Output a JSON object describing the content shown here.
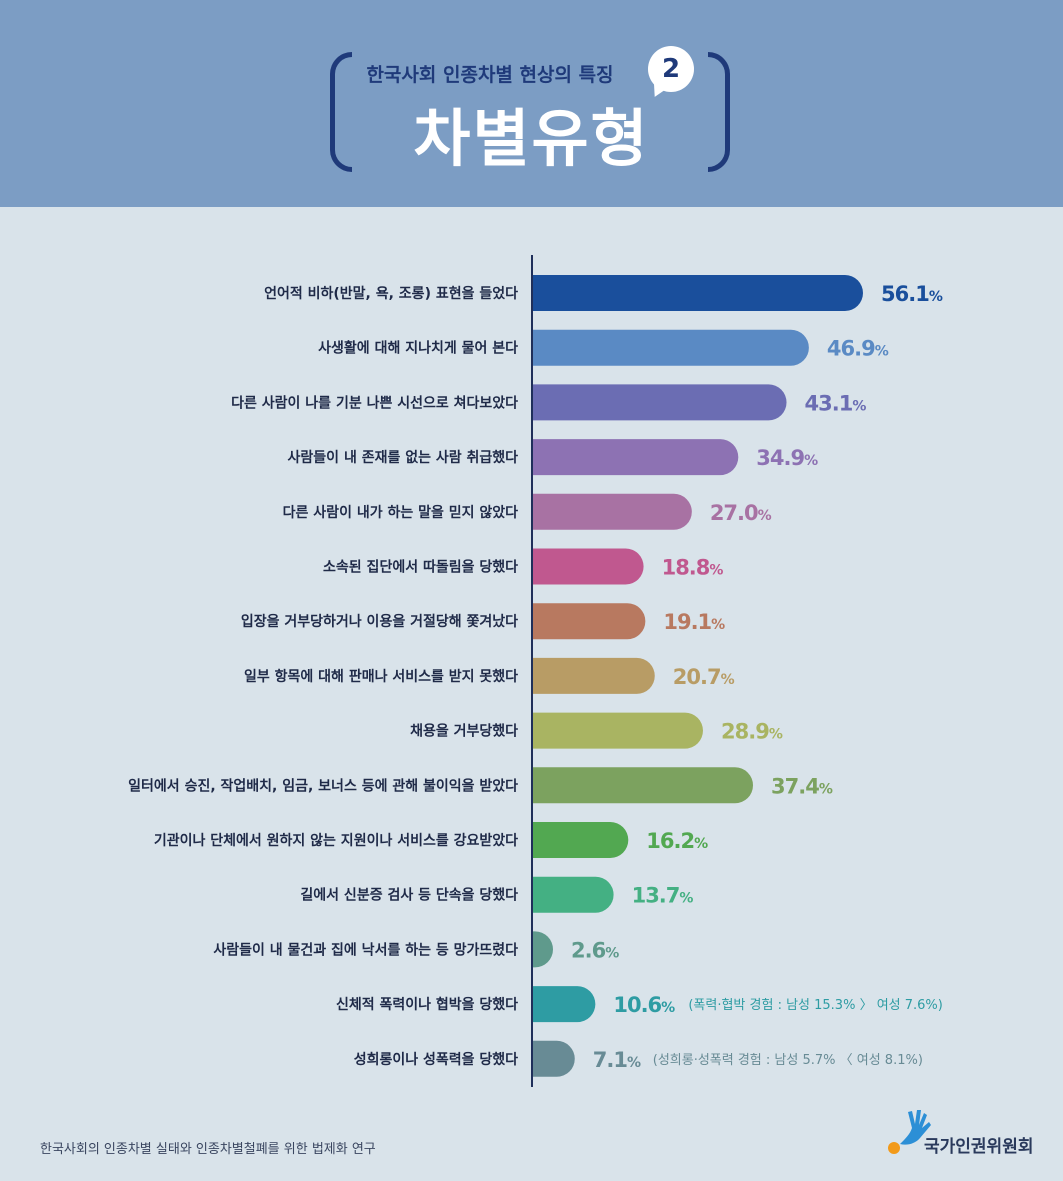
{
  "header": {
    "subtitle": "한국사회 인종차별 현상의 특징",
    "badge": "2",
    "title": "차별유형"
  },
  "chart_data": {
    "type": "bar",
    "orientation": "horizontal",
    "unit": "%",
    "categories": [
      "언어적 비하(반말, 욕, 조롱) 표현을 들었다",
      "사생활에 대해 지나치게 물어 본다",
      "다른 사람이 나를 기분 나쁜 시선으로 쳐다보았다",
      "사람들이 내 존재를 없는 사람 취급했다",
      "다른 사람이 내가 하는 말을 믿지 않았다",
      "소속된 집단에서 따돌림을 당했다",
      "입장을 거부당하거나 이용을 거절당해 쫓겨났다",
      "일부 항목에 대해 판매나 서비스를 받지 못했다",
      "채용을 거부당했다",
      "일터에서 승진, 작업배치, 임금, 보너스 등에 관해 불이익을 받았다",
      "기관이나 단체에서 원하지 않는 지원이나 서비스를 강요받았다",
      "길에서 신분증 검사 등 단속을 당했다",
      "사람들이 내 물건과 집에 낙서를 하는 등 망가뜨렸다",
      "신체적 폭력이나 협박을 당했다",
      "성희롱이나 성폭력을 당했다"
    ],
    "values": [
      56.1,
      46.9,
      43.1,
      34.9,
      27.0,
      18.8,
      19.1,
      20.7,
      28.9,
      37.4,
      16.2,
      13.7,
      2.6,
      10.6,
      7.1
    ],
    "value_labels": [
      "56.1",
      "46.9",
      "43.1",
      "34.9",
      "27.0",
      "18.8",
      "19.1",
      "20.7",
      "28.9",
      "37.4",
      "16.2",
      "13.7",
      "2.6",
      "10.6",
      "7.1"
    ],
    "colors": [
      "#1a4f9c",
      "#5a8ac4",
      "#6b6db3",
      "#8d72b3",
      "#a872a3",
      "#c0588f",
      "#b87960",
      "#b89c65",
      "#a9b462",
      "#7ca25f",
      "#52a851",
      "#44b083",
      "#5f9a8c",
      "#2e9ca3",
      "#688b95"
    ],
    "annotations": [
      {
        "index": 13,
        "text": "(폭력·협박 경험 : 남성 15.3% 〉 여성 7.6%)"
      },
      {
        "index": 14,
        "text": "(성희롱·성폭력 경험 : 남성 5.7% 〈 여성 8.1%)"
      }
    ]
  },
  "footer": {
    "source": "한국사회의 인종차별 실태와 인종차별철폐를 위한 법제화 연구",
    "logo_text": "국가인권위원회",
    "logo_colors": {
      "hand": "#2c8fd6",
      "dot": "#f29a1a"
    }
  }
}
